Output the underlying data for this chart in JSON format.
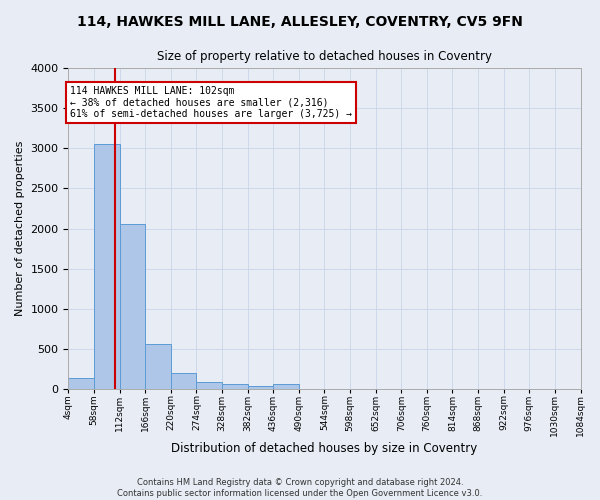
{
  "title_line1": "114, HAWKES MILL LANE, ALLESLEY, COVENTRY, CV5 9FN",
  "title_line2": "Size of property relative to detached houses in Coventry",
  "xlabel": "Distribution of detached houses by size in Coventry",
  "ylabel": "Number of detached properties",
  "bin_edges": [
    4,
    58,
    112,
    166,
    220,
    274,
    328,
    382,
    436,
    490,
    544,
    598,
    652,
    706,
    760,
    814,
    868,
    922,
    976,
    1030,
    1084
  ],
  "bar_heights": [
    140,
    3060,
    2060,
    555,
    200,
    85,
    55,
    40,
    55,
    0,
    0,
    0,
    0,
    0,
    0,
    0,
    0,
    0,
    0,
    0
  ],
  "bar_color": "#aec6e8",
  "bar_edge_color": "#5b9bd5",
  "grid_color": "#c8d4e8",
  "background_color": "#e8edf5",
  "property_size": 102,
  "annotation_line1": "114 HAWKES MILL LANE: 102sqm",
  "annotation_line2": "← 38% of detached houses are smaller (2,316)",
  "annotation_line3": "61% of semi-detached houses are larger (3,725) →",
  "annotation_box_color": "#ffffff",
  "annotation_box_edge_color": "#cc0000",
  "red_line_color": "#cc0000",
  "footer_line1": "Contains HM Land Registry data © Crown copyright and database right 2024.",
  "footer_line2": "Contains public sector information licensed under the Open Government Licence v3.0.",
  "ylim": [
    0,
    4000
  ],
  "yticks": [
    0,
    500,
    1000,
    1500,
    2000,
    2500,
    3000,
    3500,
    4000
  ]
}
